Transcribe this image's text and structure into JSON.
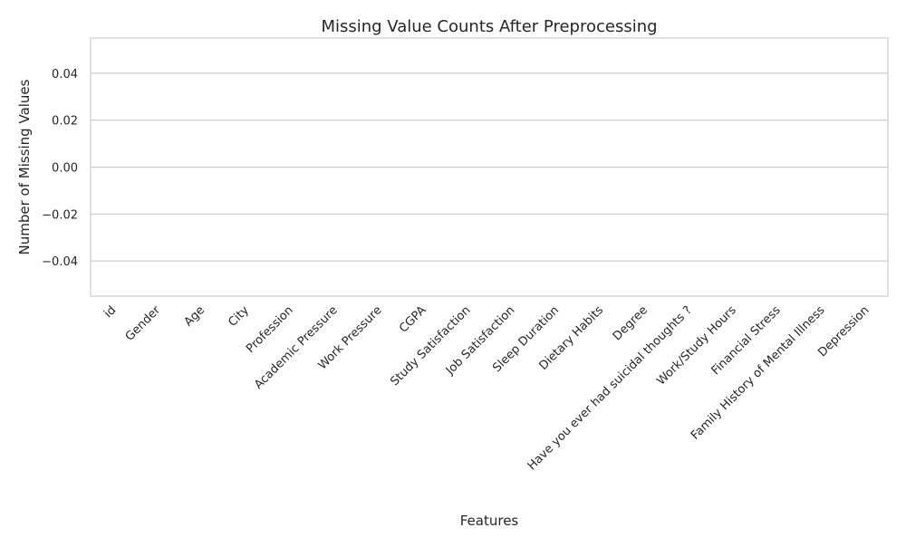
{
  "chart_data": {
    "type": "bar",
    "title": "Missing Value Counts After Preprocessing",
    "xlabel": "Features",
    "ylabel": "Number of Missing Values",
    "categories": [
      "id",
      "Gender",
      "Age",
      "City",
      "Profession",
      "Academic Pressure",
      "Work Pressure",
      "CGPA",
      "Study Satisfaction",
      "Job Satisfaction",
      "Sleep Duration",
      "Dietary Habits",
      "Degree",
      "Have you ever had suicidal thoughts ?",
      "Work/Study Hours",
      "Financial Stress",
      "Family History of Mental Illness",
      "Depression"
    ],
    "values": [
      0,
      0,
      0,
      0,
      0,
      0,
      0,
      0,
      0,
      0,
      0,
      0,
      0,
      0,
      0,
      0,
      0,
      0
    ],
    "ylim": [
      -0.055,
      0.055
    ],
    "yticks": [
      -0.04,
      -0.02,
      0.0,
      0.02,
      0.04
    ],
    "ytick_labels": [
      "−0.04",
      "−0.02",
      "0.00",
      "0.02",
      "0.04"
    ],
    "grid": true,
    "legend": "none",
    "colors": {
      "grid": "#cccccc",
      "frame": "#cccccc",
      "bar": "#c8c8c8",
      "text": "#262626"
    }
  }
}
